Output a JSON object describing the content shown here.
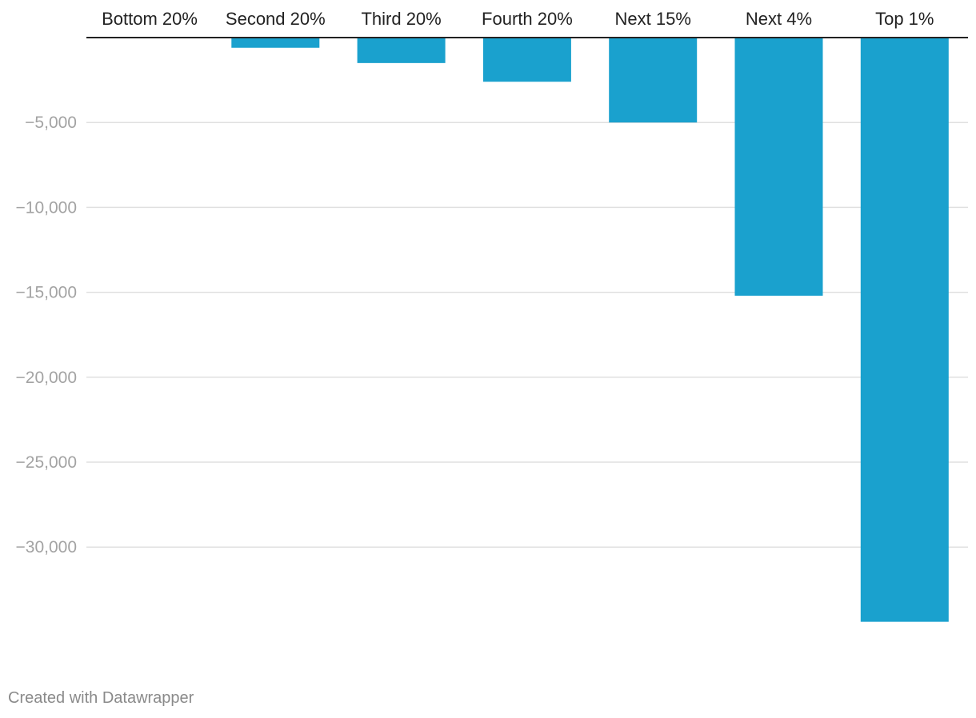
{
  "chart_data": {
    "type": "bar",
    "orientation": "vertical",
    "categories": [
      "Bottom 20%",
      "Second 20%",
      "Third 20%",
      "Fourth 20%",
      "Next 15%",
      "Next 4%",
      "Top 1%"
    ],
    "values": [
      0,
      -600,
      -1500,
      -2600,
      -5000,
      -15200,
      -34400
    ],
    "ylim": [
      -36000,
      0
    ],
    "yticks": [
      {
        "value": -5000,
        "label": "−5,000"
      },
      {
        "value": -10000,
        "label": "−10,000"
      },
      {
        "value": -15000,
        "label": "−15,000"
      },
      {
        "value": -20000,
        "label": "−20,000"
      },
      {
        "value": -25000,
        "label": "−25,000"
      },
      {
        "value": -30000,
        "label": "−30,000"
      }
    ],
    "category_labels_position": "top",
    "grid": true,
    "colors": {
      "bar": "#1aa1ce",
      "gridline": "#e0e0e0",
      "baseline": "#222222",
      "tick_text": "#a3a3a3",
      "category_text": "#222222"
    }
  },
  "footer": {
    "credit": "Created with Datawrapper"
  }
}
